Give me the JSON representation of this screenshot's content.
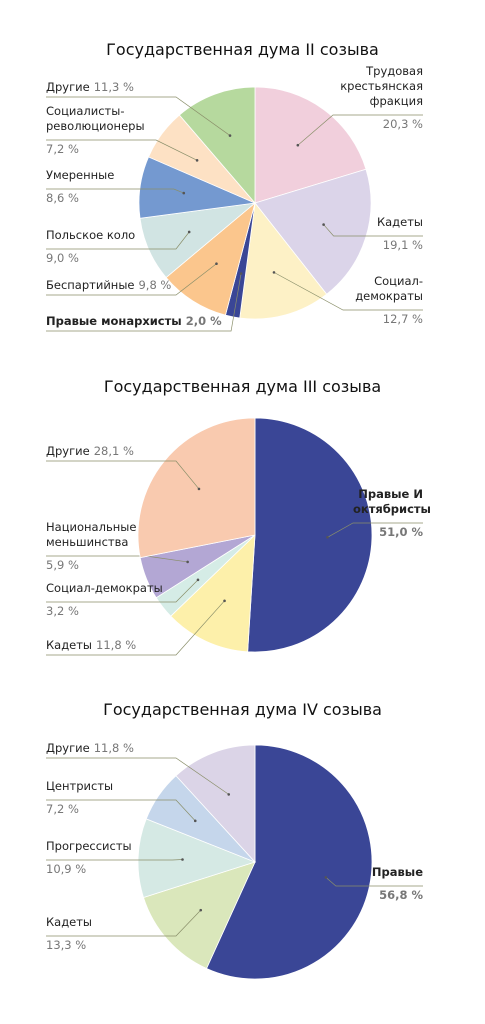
{
  "chart_data": [
    {
      "type": "pie",
      "title": "Государственная дума II созыва",
      "categories": [
        "Трудовая крестьянская фракция",
        "Кадеты",
        "Социал-демократы",
        "Правые монархисты",
        "Беспартийные",
        "Польское коло",
        "Умеренные",
        "Социалисты-революционеры",
        "Другие"
      ],
      "values": [
        20.3,
        19.1,
        12.7,
        2.0,
        9.8,
        9.0,
        8.6,
        7.2,
        11.3
      ],
      "value_labels": [
        "20,3 %",
        "19,1 %",
        "12,7 %",
        "2,0 %",
        "9,8 %",
        "9,0 %",
        "8,6 %",
        "7,2 %",
        "11,3 %"
      ],
      "colors": [
        "#f1cfdc",
        "#dbd4e9",
        "#fdf1c6",
        "#3a4696",
        "#fbc68d",
        "#d1e4e3",
        "#7499d0",
        "#fde1c4",
        "#b6d99e"
      ]
    },
    {
      "type": "pie",
      "title": "Государственная дума III созыва",
      "categories": [
        "Правые И октябристы",
        "Кадеты",
        "Социал-демократы",
        "Национальные меньшинства",
        "Другие"
      ],
      "values": [
        51.0,
        11.8,
        3.2,
        5.9,
        28.1
      ],
      "value_labels": [
        "51,0 %",
        "11,8 %",
        "3,2 %",
        "5,9 %",
        "28,1 %"
      ],
      "colors": [
        "#3a4696",
        "#fdf0aa",
        "#d5ece6",
        "#b3a7d4",
        "#f9caaf"
      ]
    },
    {
      "type": "pie",
      "title": "Государственная дума IV созыва",
      "categories": [
        "Правые",
        "Кадеты",
        "Прогрессисты",
        "Центристы",
        "Другие"
      ],
      "values": [
        56.8,
        13.3,
        10.9,
        7.2,
        11.8
      ],
      "value_labels": [
        "56,8 %",
        "13,3 %",
        "10,9 %",
        "7,2 %",
        "11,8 %"
      ],
      "colors": [
        "#3a4696",
        "#dae7bb",
        "#d5e9e4",
        "#c5d6eb",
        "#dbd4e7"
      ]
    }
  ]
}
